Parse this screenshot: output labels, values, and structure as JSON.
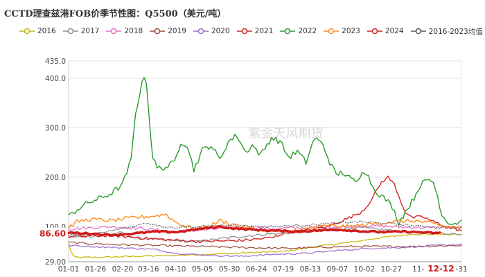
{
  "title": "CCTD理查兹港FOB价季节性图：Q5500（美元/吨）",
  "watermark": "紫金天风期货",
  "chart_data": {
    "type": "line",
    "title": "CCTD理查兹港FOB价季节性图：Q5500（美元/吨）",
    "xlabel": "",
    "ylabel": "",
    "ylim": [
      29.0,
      435.0
    ],
    "y_ticks": [
      "29.00",
      "100.0",
      "200.0",
      "300.0",
      "400.0",
      "435.0"
    ],
    "y_tick_values": [
      29.0,
      100,
      200,
      300,
      400,
      435.0
    ],
    "x_tick_labels": [
      "01-01",
      "01-26",
      "02-20",
      "03-16",
      "04-10",
      "05-05",
      "05-30",
      "06-24",
      "07-19",
      "08-13",
      "09-07",
      "10-02",
      "10-27",
      "11-",
      "12-12",
      "-31"
    ],
    "x_tick_days": [
      0,
      25,
      50,
      74,
      99,
      124,
      149,
      174,
      199,
      224,
      249,
      274,
      299,
      324,
      345,
      364
    ],
    "highlight_x_label": "12-12",
    "last_value_label": "86.60",
    "last_value": 86.6,
    "grid": "horizontal",
    "legend_position": "top",
    "series": [
      {
        "name": "2016",
        "color": "#c8b400",
        "width": 1.2,
        "noise": 1.5,
        "points": [
          [
            0,
            65
          ],
          [
            3,
            45
          ],
          [
            6,
            38
          ],
          [
            30,
            38
          ],
          [
            60,
            40
          ],
          [
            100,
            42
          ],
          [
            150,
            46
          ],
          [
            200,
            50
          ],
          [
            230,
            60
          ],
          [
            260,
            68
          ],
          [
            290,
            78
          ],
          [
            320,
            85
          ],
          [
            364,
            84
          ]
        ]
      },
      {
        "name": "2017",
        "color": "#8c8c8c",
        "width": 1.2,
        "noise": 2.5,
        "points": [
          [
            0,
            78
          ],
          [
            30,
            82
          ],
          [
            50,
            88
          ],
          [
            60,
            78
          ],
          [
            90,
            72
          ],
          [
            120,
            70
          ],
          [
            150,
            78
          ],
          [
            180,
            84
          ],
          [
            210,
            88
          ],
          [
            240,
            95
          ],
          [
            270,
            98
          ],
          [
            300,
            92
          ],
          [
            330,
            88
          ],
          [
            364,
            85
          ]
        ]
      },
      {
        "name": "2018",
        "color": "#e86ac6",
        "width": 1.2,
        "noise": 3,
        "points": [
          [
            0,
            95
          ],
          [
            40,
            100
          ],
          [
            70,
            96
          ],
          [
            100,
            90
          ],
          [
            130,
            94
          ],
          [
            160,
            100
          ],
          [
            190,
            96
          ],
          [
            220,
            98
          ],
          [
            250,
            100
          ],
          [
            280,
            102
          ],
          [
            310,
            99
          ],
          [
            340,
            98
          ],
          [
            364,
            100
          ]
        ]
      },
      {
        "name": "2019",
        "color": "#9e4a3a",
        "width": 1.2,
        "noise": 2,
        "points": [
          [
            0,
            68
          ],
          [
            40,
            64
          ],
          [
            80,
            62
          ],
          [
            120,
            60
          ],
          [
            160,
            58
          ],
          [
            200,
            56
          ],
          [
            230,
            58
          ],
          [
            260,
            60
          ],
          [
            290,
            60
          ],
          [
            320,
            60
          ],
          [
            364,
            62
          ]
        ]
      },
      {
        "name": "2020",
        "color": "#9b6cc8",
        "width": 1.2,
        "noise": 1.5,
        "points": [
          [
            0,
            62
          ],
          [
            40,
            58
          ],
          [
            80,
            54
          ],
          [
            100,
            46
          ],
          [
            130,
            42
          ],
          [
            160,
            40
          ],
          [
            190,
            44
          ],
          [
            220,
            46
          ],
          [
            250,
            52
          ],
          [
            280,
            56
          ],
          [
            310,
            58
          ],
          [
            340,
            62
          ],
          [
            364,
            64
          ]
        ]
      },
      {
        "name": "2021",
        "color": "#d42222",
        "width": 1.4,
        "noise": 3,
        "points": [
          [
            0,
            80
          ],
          [
            40,
            82
          ],
          [
            80,
            75
          ],
          [
            120,
            70
          ],
          [
            160,
            72
          ],
          [
            190,
            78
          ],
          [
            200,
            88
          ],
          [
            220,
            92
          ],
          [
            240,
            100
          ],
          [
            260,
            118
          ],
          [
            270,
            128
          ],
          [
            276,
            140
          ],
          [
            282,
            160
          ],
          [
            290,
            190
          ],
          [
            296,
            200
          ],
          [
            302,
            185
          ],
          [
            308,
            150
          ],
          [
            312,
            130
          ],
          [
            318,
            118
          ],
          [
            328,
            120
          ],
          [
            338,
            110
          ],
          [
            350,
            100
          ],
          [
            364,
            92
          ]
        ]
      },
      {
        "name": "2022",
        "color": "#2a9a2a",
        "width": 1.4,
        "noise": 6,
        "points": [
          [
            0,
            120
          ],
          [
            8,
            135
          ],
          [
            20,
            150
          ],
          [
            30,
            158
          ],
          [
            40,
            168
          ],
          [
            50,
            185
          ],
          [
            58,
            235
          ],
          [
            62,
            330
          ],
          [
            66,
            370
          ],
          [
            70,
            405
          ],
          [
            72,
            395
          ],
          [
            75,
            310
          ],
          [
            78,
            240
          ],
          [
            82,
            218
          ],
          [
            90,
            220
          ],
          [
            98,
            230
          ],
          [
            104,
            272
          ],
          [
            110,
            265
          ],
          [
            116,
            215
          ],
          [
            124,
            255
          ],
          [
            132,
            265
          ],
          [
            140,
            235
          ],
          [
            148,
            272
          ],
          [
            156,
            285
          ],
          [
            164,
            250
          ],
          [
            170,
            265
          ],
          [
            178,
            245
          ],
          [
            188,
            280
          ],
          [
            196,
            272
          ],
          [
            204,
            240
          ],
          [
            212,
            252
          ],
          [
            220,
            230
          ],
          [
            228,
            280
          ],
          [
            236,
            265
          ],
          [
            242,
            230
          ],
          [
            248,
            205
          ],
          [
            254,
            210
          ],
          [
            262,
            195
          ],
          [
            268,
            190
          ],
          [
            272,
            215
          ],
          [
            276,
            210
          ],
          [
            282,
            180
          ],
          [
            288,
            165
          ],
          [
            294,
            155
          ],
          [
            300,
            140
          ],
          [
            306,
            108
          ],
          [
            312,
            130
          ],
          [
            318,
            150
          ],
          [
            326,
            185
          ],
          [
            334,
            195
          ],
          [
            338,
            190
          ],
          [
            342,
            160
          ],
          [
            346,
            125
          ],
          [
            350,
            112
          ],
          [
            356,
            106
          ],
          [
            360,
            108
          ],
          [
            364,
            112
          ]
        ]
      },
      {
        "name": "2023",
        "color": "#ff8c1a",
        "width": 1.4,
        "noise": 4,
        "points": [
          [
            0,
            98
          ],
          [
            8,
            110
          ],
          [
            20,
            115
          ],
          [
            40,
            112
          ],
          [
            60,
            118
          ],
          [
            80,
            122
          ],
          [
            90,
            125
          ],
          [
            100,
            108
          ],
          [
            110,
            100
          ],
          [
            120,
            95
          ],
          [
            130,
            100
          ],
          [
            140,
            112
          ],
          [
            160,
            100
          ],
          [
            180,
            92
          ],
          [
            200,
            90
          ],
          [
            220,
            95
          ],
          [
            240,
            102
          ],
          [
            260,
            100
          ],
          [
            280,
            105
          ],
          [
            300,
            110
          ],
          [
            320,
            112
          ],
          [
            340,
            105
          ],
          [
            350,
            100
          ],
          [
            364,
            98
          ]
        ]
      },
      {
        "name": "2024",
        "color": "#d01b1b",
        "width": 3.5,
        "noise": 1.5,
        "points": [
          [
            0,
            88
          ],
          [
            20,
            86
          ],
          [
            40,
            83
          ],
          [
            60,
            86
          ],
          [
            80,
            90
          ],
          [
            100,
            89
          ],
          [
            120,
            95
          ],
          [
            140,
            100
          ],
          [
            150,
            97
          ],
          [
            170,
            94
          ],
          [
            190,
            92
          ],
          [
            210,
            90
          ],
          [
            230,
            92
          ],
          [
            250,
            94
          ],
          [
            270,
            91
          ],
          [
            290,
            89
          ],
          [
            310,
            90
          ],
          [
            330,
            88
          ],
          [
            345,
            86.6
          ]
        ]
      },
      {
        "name": "2016-2023均值",
        "color": "#555555",
        "width": 1.0,
        "noise": 2,
        "dashed": true,
        "points": [
          [
            0,
            82
          ],
          [
            30,
            88
          ],
          [
            60,
            100
          ],
          [
            70,
            108
          ],
          [
            90,
            98
          ],
          [
            120,
            100
          ],
          [
            150,
            104
          ],
          [
            180,
            100
          ],
          [
            210,
            102
          ],
          [
            240,
            106
          ],
          [
            270,
            110
          ],
          [
            300,
            106
          ],
          [
            330,
            100
          ],
          [
            364,
            96
          ]
        ]
      }
    ]
  }
}
